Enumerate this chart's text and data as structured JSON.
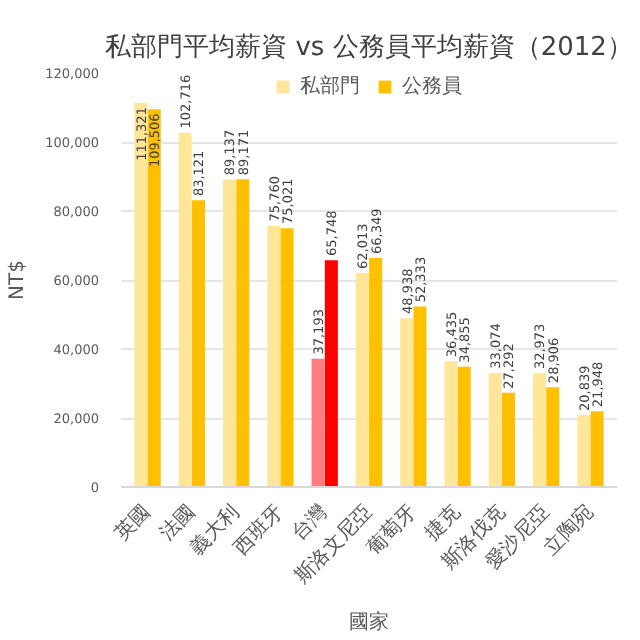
{
  "chart_data": {
    "type": "bar",
    "title": "私部門平均薪資 vs 公務員平均薪資（2012）",
    "xlabel": "國家",
    "ylabel": "NT$",
    "categories": [
      "英國",
      "法國",
      "義大利",
      "西班牙",
      "台灣",
      "斯洛文尼亞",
      "葡萄牙",
      "捷克",
      "斯洛伐克",
      "愛沙尼亞",
      "立陶宛"
    ],
    "series": [
      {
        "name": "私部門",
        "color": "#ffe699",
        "colors": [
          "#ffe699",
          "#ffe699",
          "#ffe699",
          "#ffe699",
          "#ff7c80",
          "#ffe699",
          "#ffe699",
          "#ffe699",
          "#ffe699",
          "#ffe699",
          "#ffe699"
        ],
        "values": [
          111321,
          102716,
          89137,
          75760,
          37193,
          62013,
          48938,
          36435,
          33074,
          32973,
          20839
        ],
        "value_labels": [
          "111,321",
          "102,716",
          "89,137",
          "75,760",
          "37,193",
          "62,013",
          "48,938",
          "36,435",
          "33,074",
          "32,973",
          "20,839"
        ]
      },
      {
        "name": "公務員",
        "color": "#ffc000",
        "colors": [
          "#ffc000",
          "#ffc000",
          "#ffc000",
          "#ffc000",
          "#ff0000",
          "#ffc000",
          "#ffc000",
          "#ffc000",
          "#ffc000",
          "#ffc000",
          "#ffc000"
        ],
        "values": [
          109506,
          83121,
          89171,
          75021,
          65748,
          66349,
          52333,
          34855,
          27292,
          28906,
          21948
        ],
        "value_labels": [
          "109,506",
          "83,121",
          "89,171",
          "75,021",
          "65,748",
          "66,349",
          "52,333",
          "34,855",
          "27,292",
          "28,906",
          "21,948"
        ]
      }
    ],
    "ylim": [
      0,
      120000
    ],
    "yticks": [
      {
        "value": 0,
        "label": "0"
      },
      {
        "value": 20000,
        "label": "20,000"
      },
      {
        "value": 40000,
        "label": "40,000"
      },
      {
        "value": 60000,
        "label": "60,000"
      },
      {
        "value": 80000,
        "label": "80,000"
      },
      {
        "value": 100000,
        "label": "100,000"
      },
      {
        "value": 120000,
        "label": "120,000"
      }
    ],
    "grid": "y",
    "legend": "top"
  }
}
